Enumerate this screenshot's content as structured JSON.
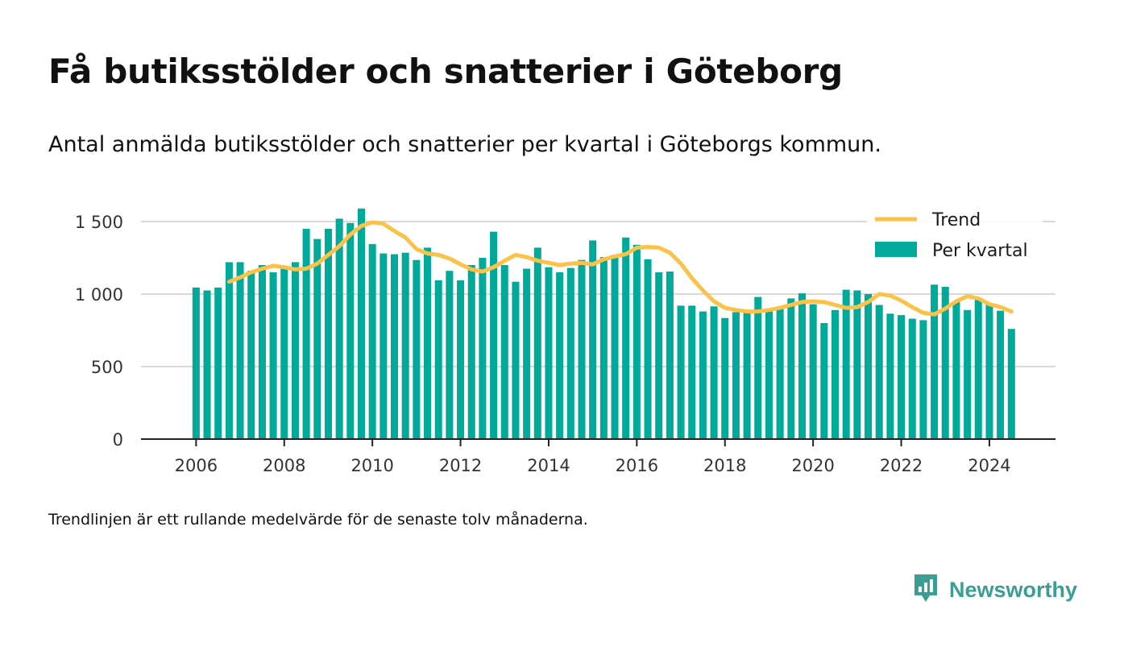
{
  "title": "Få butiksstölder och snatterier i Göteborg",
  "subtitle": "Antal anmälda butiksstölder och snatterier per kvartal i Göteborgs kommun.",
  "note": "Trendlinjen är ett rullande medelvärde för de senaste tolv månaderna.",
  "brand": {
    "name": "Newsworthy",
    "icon": "newsworthy-logo-icon"
  },
  "colors": {
    "bars": "#00a99a",
    "trend": "#fbc249",
    "grid": "#d9d9d9",
    "axis": "#222222"
  },
  "chart_data": {
    "type": "bar",
    "title": "Få butiksstölder och snatterier i Göteborg",
    "ylim": [
      0,
      1650
    ],
    "xlim": [
      2004.75,
      2025.5
    ],
    "yticks": [
      0,
      500,
      1000,
      1500
    ],
    "ytick_labels": [
      "0",
      "500",
      "1 000",
      "1 500"
    ],
    "xticks": [
      2006,
      2008,
      2010,
      2012,
      2014,
      2016,
      2018,
      2020,
      2022,
      2024
    ],
    "xtick_labels": [
      "2006",
      "2008",
      "2010",
      "2012",
      "2014",
      "2016",
      "2018",
      "2020",
      "2022",
      "2024"
    ],
    "grid": true,
    "legend_position": "top-right",
    "legend": [
      "Trend",
      "Per kvartal"
    ],
    "x": [
      2006.0,
      2006.25,
      2006.5,
      2006.75,
      2007.0,
      2007.25,
      2007.5,
      2007.75,
      2008.0,
      2008.25,
      2008.5,
      2008.75,
      2009.0,
      2009.25,
      2009.5,
      2009.75,
      2010.0,
      2010.25,
      2010.5,
      2010.75,
      2011.0,
      2011.25,
      2011.5,
      2011.75,
      2012.0,
      2012.25,
      2012.5,
      2012.75,
      2013.0,
      2013.25,
      2013.5,
      2013.75,
      2014.0,
      2014.25,
      2014.5,
      2014.75,
      2015.0,
      2015.25,
      2015.5,
      2015.75,
      2016.0,
      2016.25,
      2016.5,
      2016.75,
      2017.0,
      2017.25,
      2017.5,
      2017.75,
      2018.0,
      2018.25,
      2018.5,
      2018.75,
      2019.0,
      2019.25,
      2019.5,
      2019.75,
      2020.0,
      2020.25,
      2020.5,
      2020.75,
      2021.0,
      2021.25,
      2021.5,
      2021.75,
      2022.0,
      2022.25,
      2022.5,
      2022.75,
      2023.0,
      2023.25,
      2023.5,
      2023.75,
      2024.0,
      2024.25,
      2024.5
    ],
    "series": [
      {
        "name": "Per kvartal",
        "type": "bar",
        "values": [
          1045,
          1025,
          1045,
          1220,
          1220,
          1160,
          1200,
          1150,
          1180,
          1220,
          1450,
          1380,
          1450,
          1520,
          1490,
          1590,
          1345,
          1280,
          1275,
          1285,
          1235,
          1320,
          1095,
          1160,
          1095,
          1200,
          1250,
          1430,
          1200,
          1085,
          1175,
          1320,
          1185,
          1150,
          1180,
          1235,
          1370,
          1255,
          1270,
          1390,
          1340,
          1240,
          1150,
          1155,
          920,
          920,
          880,
          915,
          835,
          875,
          885,
          980,
          900,
          915,
          970,
          1005,
          930,
          800,
          890,
          1030,
          1025,
          1000,
          925,
          865,
          855,
          830,
          820,
          1065,
          1050,
          950,
          890,
          960,
          935,
          885,
          760
        ]
      },
      {
        "name": "Trend",
        "type": "line",
        "values": [
          null,
          null,
          null,
          1085,
          1115,
          1150,
          1175,
          1195,
          1185,
          1170,
          1175,
          1210,
          1270,
          1330,
          1410,
          1470,
          1495,
          1485,
          1435,
          1390,
          1310,
          1280,
          1270,
          1245,
          1205,
          1170,
          1155,
          1185,
          1230,
          1270,
          1255,
          1230,
          1215,
          1200,
          1210,
          1215,
          1205,
          1240,
          1260,
          1275,
          1320,
          1325,
          1320,
          1285,
          1210,
          1110,
          1025,
          950,
          905,
          890,
          880,
          880,
          890,
          905,
          925,
          945,
          950,
          945,
          925,
          905,
          910,
          945,
          1000,
          990,
          955,
          910,
          870,
          860,
          900,
          950,
          985,
          970,
          930,
          910,
          880
        ]
      }
    ]
  }
}
